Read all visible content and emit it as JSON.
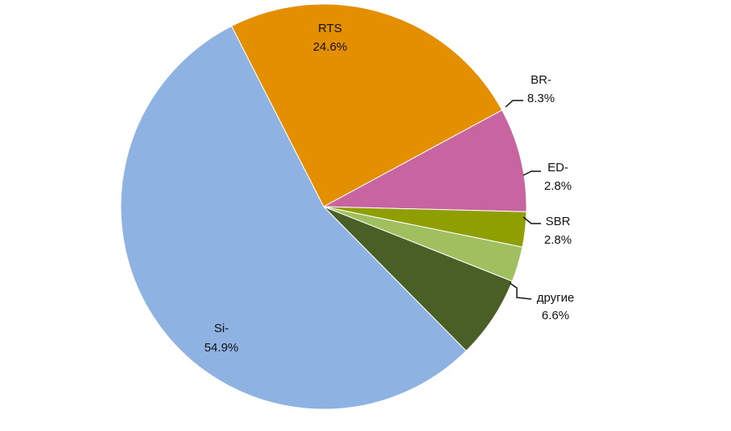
{
  "chart_data": {
    "type": "pie",
    "title": "",
    "slices": [
      {
        "name": "RTS",
        "value": 24.6,
        "label": "24.6%",
        "color": "#E38F00"
      },
      {
        "name": "BR-",
        "value": 8.3,
        "label": "8.3%",
        "color": "#C864A0"
      },
      {
        "name": "ED-",
        "value": 2.8,
        "label": "2.8%",
        "color": "#8F9E00"
      },
      {
        "name": "SBR",
        "value": 2.8,
        "label": "2.8%",
        "color": "#A0C060"
      },
      {
        "name": "другие",
        "value": 6.6,
        "label": "6.6%",
        "color": "#4A5F25"
      },
      {
        "name": "Si-",
        "value": 54.9,
        "label": "54.9%",
        "color": "#8EB3E2"
      }
    ]
  }
}
